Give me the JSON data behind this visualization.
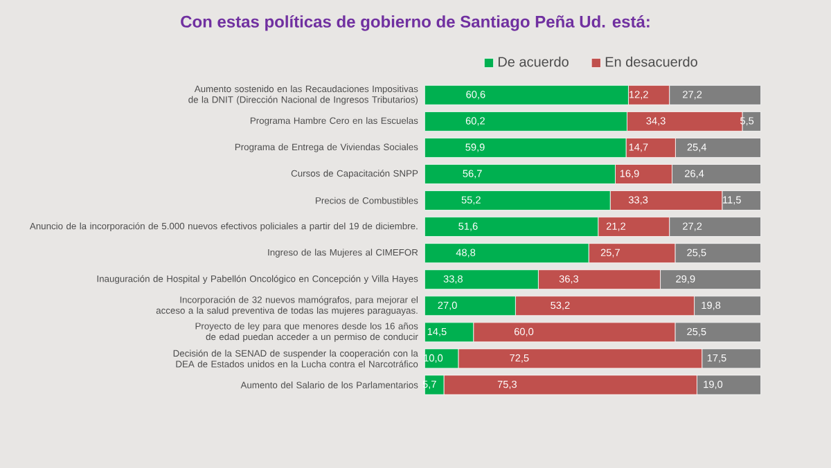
{
  "chart_data": {
    "type": "bar",
    "orientation": "horizontal",
    "stacked": true,
    "title": "Con estas políticas de gobierno de Santiago Peña Ud. está:",
    "categories": [
      "Aumento sostenido en las Recaudaciones Impositivas de la DNIT (Dirección Nacional de Ingresos Tributarios)",
      "Programa Hambre Cero en las Escuelas",
      "Programa de Entrega de Viviendas Sociales",
      "Cursos de Capacitación SNPP",
      "Precios de Combustibles",
      "Anuncio de la incorporación de 5.000 nuevos efectivos policiales a partir del 19 de diciembre.",
      "Ingreso de las Mujeres al CIMEFOR",
      "Inauguración de Hospital y Pabellón Oncológico en Concepción y Villa Hayes",
      "Incorporación de 32 nuevos mamógrafos, para mejorar el acceso a la salud preventiva de todas las mujeres paraguayas.",
      "Proyecto de ley para que menores desde los 16 años de edad puedan acceder a un permiso de conducir",
      "Decisión de la SENAD de suspender la cooperación con la DEA de Estados unidos en la Lucha contra el Narcotráfico",
      "Aumento del Salario de los Parlamentarios"
    ],
    "series": [
      {
        "name": "De acuerdo",
        "color": "#00b050",
        "values": [
          60.6,
          60.2,
          59.9,
          56.7,
          55.2,
          51.6,
          48.8,
          33.8,
          27.0,
          14.5,
          10.0,
          5.7
        ],
        "value_labels": [
          "60,6",
          "60,2",
          "59,9",
          "56,7",
          "55,2",
          "51,6",
          "48,8",
          "33,8",
          "27,0",
          "14,5",
          "10,0",
          "5,7"
        ]
      },
      {
        "name": "En desacuerdo",
        "color": "#c0504d",
        "values": [
          12.2,
          34.3,
          14.7,
          16.9,
          33.3,
          21.2,
          25.7,
          36.3,
          53.2,
          60.0,
          72.5,
          75.3
        ],
        "value_labels": [
          "12,2",
          "34,3",
          "14,7",
          "16,9",
          "33,3",
          "21,2",
          "25,7",
          "36,3",
          "53,2",
          "60,0",
          "72,5",
          "75,3"
        ]
      },
      {
        "color": "#7f7f7f",
        "values": [
          27.2,
          5.5,
          25.4,
          26.4,
          11.5,
          27.2,
          25.5,
          29.9,
          19.8,
          25.5,
          17.5,
          19.0
        ],
        "value_labels": [
          "27,2",
          "5,5",
          "25,4",
          "26,4",
          "11,5",
          "27,2",
          "25,5",
          "29,9",
          "19,8",
          "25,5",
          "17,5",
          "19,0"
        ]
      }
    ],
    "legend": "top",
    "tick_labels": "y"
  }
}
